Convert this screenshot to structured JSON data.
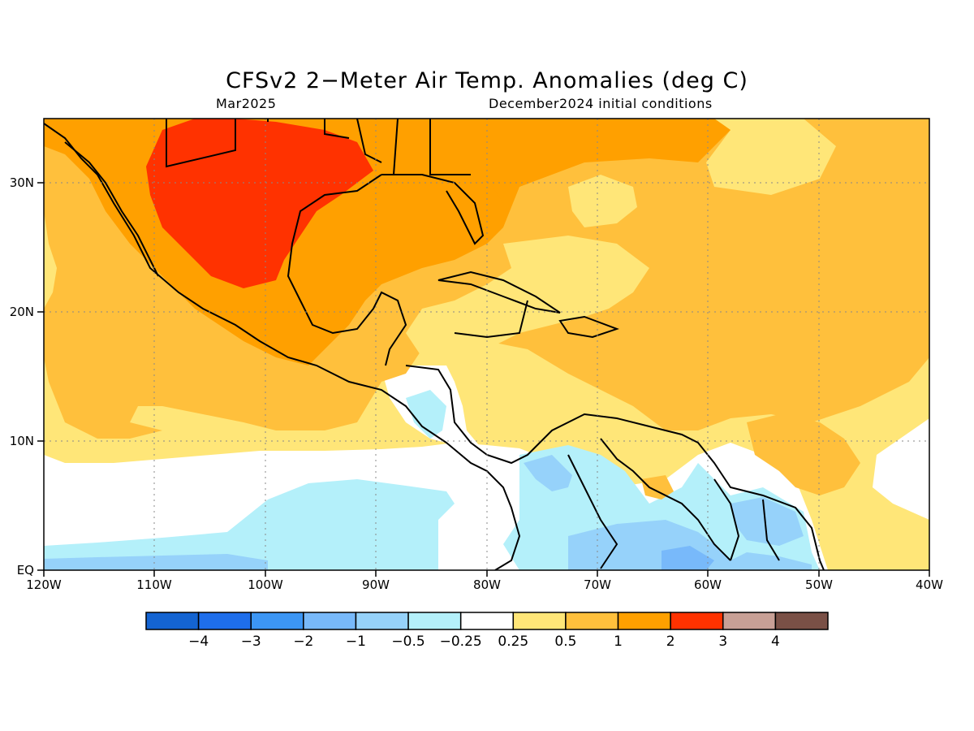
{
  "title": "CFSv2 2−Meter Air Temp. Anomalies (deg C)",
  "subtitle_left": "Mar2025",
  "subtitle_right": "December2024 initial conditions",
  "map": {
    "lon_range": [
      -120,
      -40
    ],
    "lat_range": [
      0,
      35
    ],
    "x_ticks": [
      "120W",
      "110W",
      "100W",
      "90W",
      "80W",
      "70W",
      "60W",
      "50W",
      "40W"
    ],
    "y_ticks": [
      "EQ",
      "10N",
      "20N",
      "30N"
    ],
    "grid": "dotted, every 10 degrees",
    "regions": [
      "Gulf of Mexico",
      "Caribbean Sea",
      "Central America",
      "northern South America",
      "western Atlantic",
      "eastern Pacific"
    ]
  },
  "colorbar": {
    "labels": [
      "−4",
      "−3",
      "−2",
      "−1",
      "−0.5",
      "−0.25",
      "0.25",
      "0.5",
      "1",
      "2",
      "3",
      "4"
    ],
    "colors": [
      "#1464d2",
      "#1e6eeb",
      "#3c96f5",
      "#78b9fa",
      "#96d2fa",
      "#b4f0fa",
      "#ffffff",
      "#ffe678",
      "#ffc03c",
      "#ffa000",
      "#ff3200",
      "#c8a096",
      "#7a5046"
    ]
  }
}
